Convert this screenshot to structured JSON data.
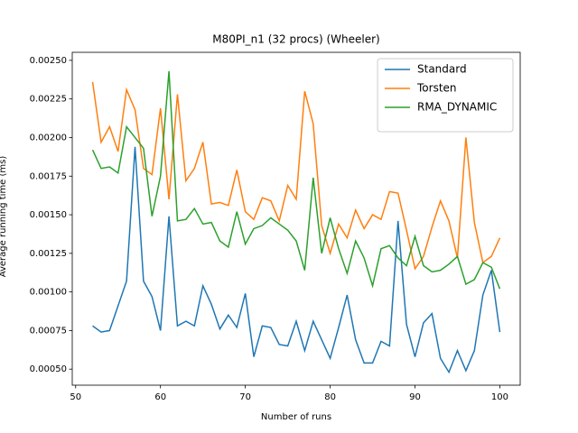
{
  "chart_data": {
    "type": "line",
    "title": "M80PI_n1 (32 procs) (Wheeler)",
    "x_label": "Number of runs",
    "y_label": "Average running time (ms)",
    "x": [
      52,
      53,
      54,
      55,
      56,
      57,
      58,
      59,
      60,
      61,
      62,
      63,
      64,
      65,
      66,
      67,
      68,
      69,
      70,
      71,
      72,
      73,
      74,
      75,
      76,
      77,
      78,
      79,
      80,
      81,
      82,
      83,
      84,
      85,
      86,
      87,
      88,
      89,
      90,
      91,
      92,
      93,
      94,
      95,
      96,
      97,
      98,
      99,
      100
    ],
    "series": [
      {
        "name": "Standard",
        "color": "#1f77b4",
        "values": [
          0.00078,
          0.00074,
          0.00075,
          0.00091,
          0.00107,
          0.00194,
          0.00107,
          0.00097,
          0.00075,
          0.00149,
          0.00078,
          0.00081,
          0.00078,
          0.00104,
          0.00092,
          0.00076,
          0.00085,
          0.00077,
          0.00099,
          0.00058,
          0.00078,
          0.00077,
          0.00066,
          0.00065,
          0.00081,
          0.00062,
          0.00081,
          0.00069,
          0.00057,
          0.00077,
          0.00098,
          0.00069,
          0.00054,
          0.00054,
          0.00068,
          0.00065,
          0.00146,
          0.00079,
          0.00058,
          0.0008,
          0.00086,
          0.00057,
          0.00048,
          0.00062,
          0.00049,
          0.00062,
          0.00098,
          0.00114,
          0.00074
        ]
      },
      {
        "name": "Torsten",
        "color": "#ff7f0e",
        "values": [
          0.00236,
          0.00197,
          0.00207,
          0.00191,
          0.00231,
          0.00218,
          0.0018,
          0.00176,
          0.00219,
          0.0016,
          0.00228,
          0.00172,
          0.0018,
          0.00197,
          0.00157,
          0.00158,
          0.00156,
          0.00179,
          0.00152,
          0.00147,
          0.00161,
          0.00159,
          0.00146,
          0.00169,
          0.0016,
          0.0023,
          0.00209,
          0.00143,
          0.00125,
          0.00144,
          0.00135,
          0.00153,
          0.00141,
          0.0015,
          0.00147,
          0.00165,
          0.00164,
          0.0014,
          0.00115,
          0.00123,
          0.00142,
          0.00159,
          0.00146,
          0.00122,
          0.002,
          0.00145,
          0.00119,
          0.00123,
          0.00135
        ]
      },
      {
        "name": "RMA_DYNAMIC",
        "color": "#2ca02c",
        "values": [
          0.00192,
          0.0018,
          0.00181,
          0.00177,
          0.00207,
          0.002,
          0.00193,
          0.00149,
          0.00175,
          0.00243,
          0.00146,
          0.00147,
          0.00154,
          0.00144,
          0.00145,
          0.00133,
          0.00129,
          0.00152,
          0.00131,
          0.00141,
          0.00143,
          0.00148,
          0.00144,
          0.0014,
          0.00133,
          0.00114,
          0.00174,
          0.00125,
          0.00148,
          0.00128,
          0.00112,
          0.00133,
          0.00122,
          0.00104,
          0.00128,
          0.0013,
          0.00122,
          0.00117,
          0.00136,
          0.00117,
          0.00113,
          0.00114,
          0.00118,
          0.00123,
          0.00105,
          0.00108,
          0.00119,
          0.00116,
          0.00102
        ]
      }
    ],
    "xlim": [
      49.6,
      102.4
    ],
    "ylim": [
      0.000396,
      0.002552
    ],
    "xticks": [
      50,
      60,
      70,
      80,
      90,
      100
    ],
    "yticks": [
      {
        "value": 0.0005,
        "label": "0.00050"
      },
      {
        "value": 0.00075,
        "label": "0.00075"
      },
      {
        "value": 0.001,
        "label": "0.00100"
      },
      {
        "value": 0.00125,
        "label": "0.00125"
      },
      {
        "value": 0.0015,
        "label": "0.00150"
      },
      {
        "value": 0.00175,
        "label": "0.00175"
      },
      {
        "value": 0.002,
        "label": "0.00200"
      },
      {
        "value": 0.00225,
        "label": "0.00225"
      },
      {
        "value": 0.0025,
        "label": "0.00250"
      }
    ],
    "legend": "upper right"
  }
}
